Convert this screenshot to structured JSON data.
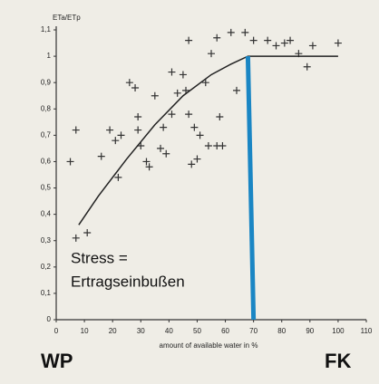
{
  "chart_data": {
    "type": "scatter",
    "y_label": "ETa/ETp",
    "x_label": "amount of available water in %",
    "annotations": [
      "Stress =",
      "Ertragseinbußen",
      "WP",
      "FK"
    ],
    "xlim": [
      0,
      110
    ],
    "ylim": [
      0,
      1.1
    ],
    "xticks": [
      0,
      10,
      20,
      30,
      40,
      50,
      60,
      70,
      80,
      90,
      100,
      110
    ],
    "yticks": [
      0,
      {
        "value": 0.1,
        "label": "0,1"
      },
      {
        "value": 0.2,
        "label": "0,2"
      },
      {
        "value": 0.3,
        "label": "0,3"
      },
      {
        "value": 0.4,
        "label": "0,4"
      },
      {
        "value": 0.5,
        "label": "0,5"
      },
      {
        "value": 0.6,
        "label": "0,6"
      },
      {
        "value": 0.7,
        "label": "0,7"
      },
      {
        "value": 0.8,
        "label": "0,8"
      },
      {
        "value": 0.9,
        "label": "0,9"
      },
      {
        "value": 1,
        "label": "1"
      },
      {
        "value": 1.1,
        "label": "1,1"
      }
    ],
    "series": [
      {
        "type": "scatter",
        "color": "#333333",
        "x": [
          5,
          7,
          11,
          7,
          16,
          19,
          21,
          23,
          22,
          26,
          28,
          29,
          29,
          30,
          32,
          33,
          35,
          37,
          38,
          39,
          41,
          41,
          43,
          45,
          46,
          47,
          48,
          49,
          50,
          51,
          53,
          54,
          57,
          58,
          59,
          64,
          47,
          55,
          57,
          62,
          67,
          70,
          75,
          78,
          81,
          83,
          86,
          89,
          91,
          100
        ],
        "values": [
          0.6,
          0.31,
          0.33,
          0.72,
          0.62,
          0.72,
          0.68,
          0.7,
          0.54,
          0.9,
          0.88,
          0.77,
          0.72,
          0.66,
          0.6,
          0.58,
          0.85,
          0.65,
          0.73,
          0.63,
          0.78,
          0.94,
          0.86,
          0.93,
          0.87,
          0.78,
          0.59,
          0.73,
          0.61,
          0.7,
          0.9,
          0.66,
          0.66,
          0.77,
          0.66,
          0.87,
          1.06,
          1.01,
          1.07,
          1.09,
          1.09,
          1.06,
          1.06,
          1.04,
          1.05,
          1.06,
          1.01,
          0.96,
          1.04,
          1.05
        ]
      },
      {
        "type": "line",
        "color": "#222222",
        "x": [
          8,
          15,
          25,
          35,
          45,
          55,
          62,
          68,
          80,
          90,
          100
        ],
        "values": [
          0.36,
          0.47,
          0.61,
          0.74,
          0.85,
          0.93,
          0.97,
          1.0,
          1.0,
          1.0,
          1.0
        ]
      },
      {
        "type": "line",
        "color": "#1a86c4",
        "x": [
          68,
          70
        ],
        "values": [
          1.0,
          0
        ]
      }
    ]
  }
}
